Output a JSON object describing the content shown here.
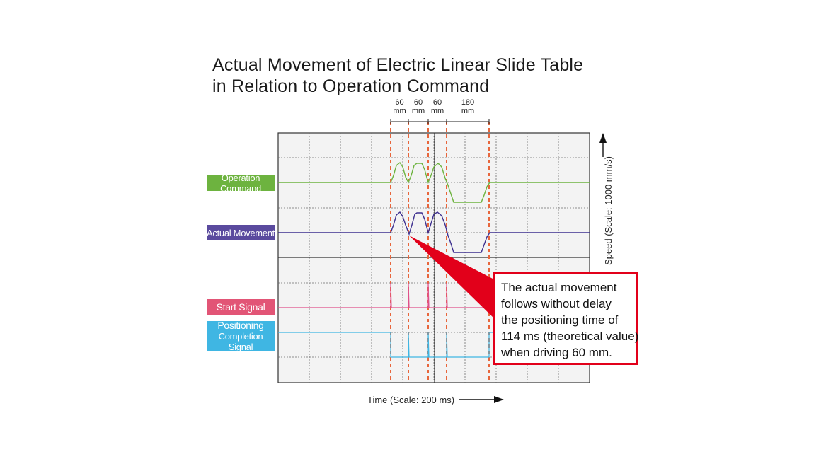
{
  "chart_data": {
    "type": "line",
    "title": "Actual Movement of Electric Linear Slide Table",
    "subtitle": "in Relation to Operation Command",
    "xlabel": "Time (Scale: 200 ms)",
    "ylabel": "Speed (Scale: 1000 mm/s)",
    "grid": true,
    "series": [
      {
        "name": "Operation Command",
        "color": "#6db33f"
      },
      {
        "name": "Actual Movement",
        "color": "#3d2f8f"
      },
      {
        "name": "Start Signal",
        "color": "#e0508a"
      },
      {
        "name": "Positioning Completion Signal",
        "color": "#3fb6e3"
      }
    ],
    "segments": [
      {
        "top": "60",
        "bottom": "mm"
      },
      {
        "top": "60",
        "bottom": "mm"
      },
      {
        "top": "60",
        "bottom": "mm"
      },
      {
        "top": "180",
        "bottom": "mm"
      }
    ],
    "annotation": [
      "The actual movement",
      "follows without delay",
      "the positioning time of",
      "114 ms (theoretical value)",
      "when driving 60 mm."
    ]
  },
  "labels": {
    "operation_command": "Operation Command",
    "actual_movement": "Actual Movement",
    "start_signal": "Start Signal",
    "positioning_line1": "Positioning",
    "positioning_line2": "Completion Signal"
  },
  "colors": {
    "grid_bg": "#f3f3f3",
    "grid_line": "#6e6e6e",
    "marker": "#e8663c",
    "label_green": "#6db33f",
    "label_purple": "#5a4a9e",
    "label_pink": "#e25576",
    "label_cyan": "#3fb6e3",
    "callout_border": "#e2001a"
  }
}
